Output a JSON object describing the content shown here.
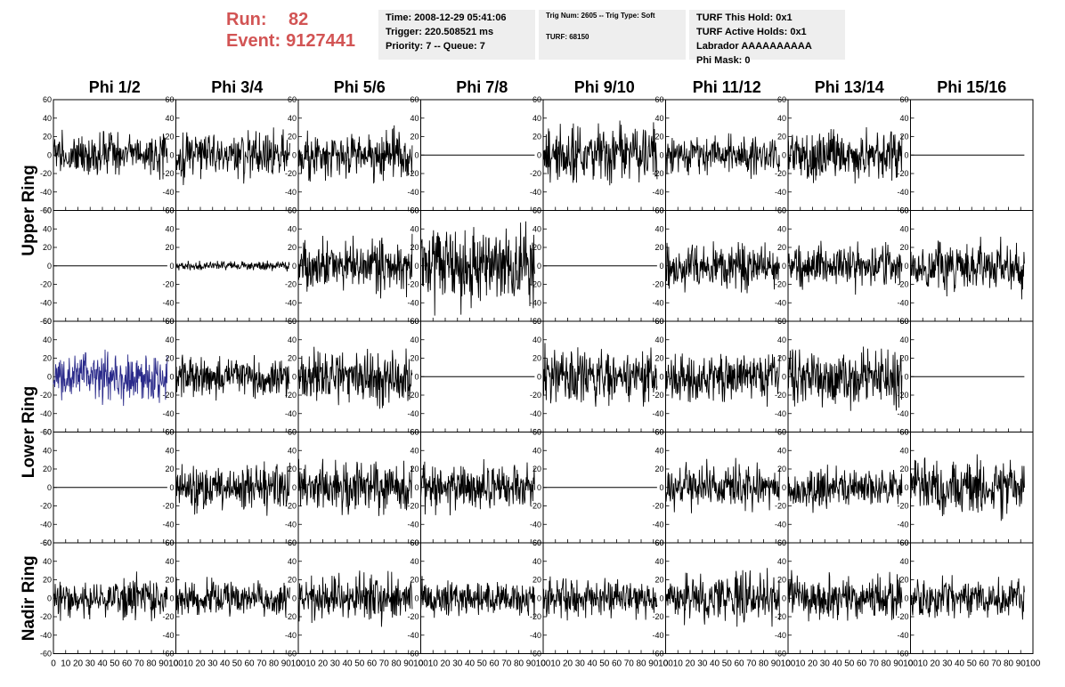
{
  "header": {
    "run_label": "Run:",
    "run_value": "82",
    "event_label": "Event:",
    "event_value": "9127441",
    "time_box": {
      "time": "Time: 2008-12-29 05:41:06",
      "trigger": "Trigger: 220.508521 ms",
      "priority": "Priority: 7 -- Queue: 7"
    },
    "trig_box": {
      "trig_num": "Trig Num: 2605 -- Trig Type: Soft",
      "turf": "TURF: 68150"
    },
    "turf_box": {
      "this_hold": "TURF This Hold: 0x1",
      "active_holds": "TURF Active Holds: 0x1",
      "labrador": "Labrador AAAAAAAAAA",
      "phi_mask": "Phi Mask: 0"
    }
  },
  "colors": {
    "title_red": "#d25454",
    "trace": "#000000",
    "highlight_trace": "#2a2a8a",
    "info_bg": "#eeeeee"
  },
  "chart_data": {
    "type": "line",
    "columns": [
      "Phi 1/2",
      "Phi 3/4",
      "Phi 5/6",
      "Phi 7/8",
      "Phi 9/10",
      "Phi 11/12",
      "Phi 13/14",
      "Phi 15/16"
    ],
    "row_groups": [
      "Upper Ring",
      "Lower Ring",
      "Nadir Ring"
    ],
    "xlim": [
      0,
      100
    ],
    "ylim": [
      -60,
      60
    ],
    "x_ticks": [
      0,
      10,
      20,
      30,
      40,
      50,
      60,
      70,
      80,
      90,
      100
    ],
    "x_tick_labels": [
      "0",
      "10",
      "20",
      "30",
      "40",
      "50",
      "60",
      "70",
      "80",
      "90",
      "100"
    ],
    "y_ticks": [
      -60,
      -40,
      -20,
      0,
      20,
      40,
      60
    ],
    "y_tick_labels": [
      "-60",
      "-40",
      "-20",
      "0",
      "20",
      "40",
      "60"
    ],
    "x_range_per_panel": [
      0,
      93
    ],
    "highlighted_panel": {
      "row": 2,
      "col": 0
    },
    "panels": [
      [
        {
          "amplitude": 14,
          "flat": false,
          "seed": 11
        },
        {
          "amplitude": 15,
          "flat": false,
          "seed": 12
        },
        {
          "amplitude": 15,
          "flat": false,
          "seed": 13
        },
        {
          "amplitude": 0,
          "flat": true,
          "seed": 14
        },
        {
          "amplitude": 19,
          "flat": false,
          "seed": 15
        },
        {
          "amplitude": 13,
          "flat": false,
          "seed": 16
        },
        {
          "amplitude": 17,
          "flat": false,
          "seed": 17
        },
        {
          "amplitude": 0,
          "flat": true,
          "seed": 18
        }
      ],
      [
        {
          "amplitude": 0,
          "flat": true,
          "seed": 21
        },
        {
          "amplitude": 3,
          "flat": false,
          "seed": 22
        },
        {
          "amplitude": 17,
          "flat": false,
          "seed": 23
        },
        {
          "amplitude": 25,
          "flat": false,
          "seed": 24
        },
        {
          "amplitude": 0,
          "flat": true,
          "seed": 25
        },
        {
          "amplitude": 14,
          "flat": false,
          "seed": 26
        },
        {
          "amplitude": 14,
          "flat": false,
          "seed": 27
        },
        {
          "amplitude": 17,
          "flat": false,
          "seed": 28
        }
      ],
      [
        {
          "amplitude": 16,
          "flat": false,
          "seed": 31
        },
        {
          "amplitude": 13,
          "flat": false,
          "seed": 32
        },
        {
          "amplitude": 17,
          "flat": false,
          "seed": 33
        },
        {
          "amplitude": 0,
          "flat": true,
          "seed": 34
        },
        {
          "amplitude": 17,
          "flat": false,
          "seed": 35
        },
        {
          "amplitude": 15,
          "flat": false,
          "seed": 36
        },
        {
          "amplitude": 17,
          "flat": false,
          "seed": 37
        },
        {
          "amplitude": 0,
          "flat": true,
          "seed": 38
        }
      ],
      [
        {
          "amplitude": 0,
          "flat": true,
          "seed": 41
        },
        {
          "amplitude": 14,
          "flat": false,
          "seed": 42
        },
        {
          "amplitude": 16,
          "flat": false,
          "seed": 43
        },
        {
          "amplitude": 14,
          "flat": false,
          "seed": 44
        },
        {
          "amplitude": 0,
          "flat": true,
          "seed": 45
        },
        {
          "amplitude": 14,
          "flat": false,
          "seed": 46
        },
        {
          "amplitude": 13,
          "flat": false,
          "seed": 47
        },
        {
          "amplitude": 18,
          "flat": false,
          "seed": 48
        }
      ],
      [
        {
          "amplitude": 13,
          "flat": false,
          "seed": 51
        },
        {
          "amplitude": 12,
          "flat": false,
          "seed": 52
        },
        {
          "amplitude": 15,
          "flat": false,
          "seed": 53
        },
        {
          "amplitude": 11,
          "flat": false,
          "seed": 54
        },
        {
          "amplitude": 12,
          "flat": false,
          "seed": 55
        },
        {
          "amplitude": 17,
          "flat": false,
          "seed": 56
        },
        {
          "amplitude": 14,
          "flat": false,
          "seed": 57
        },
        {
          "amplitude": 13,
          "flat": false,
          "seed": 58
        }
      ]
    ]
  }
}
